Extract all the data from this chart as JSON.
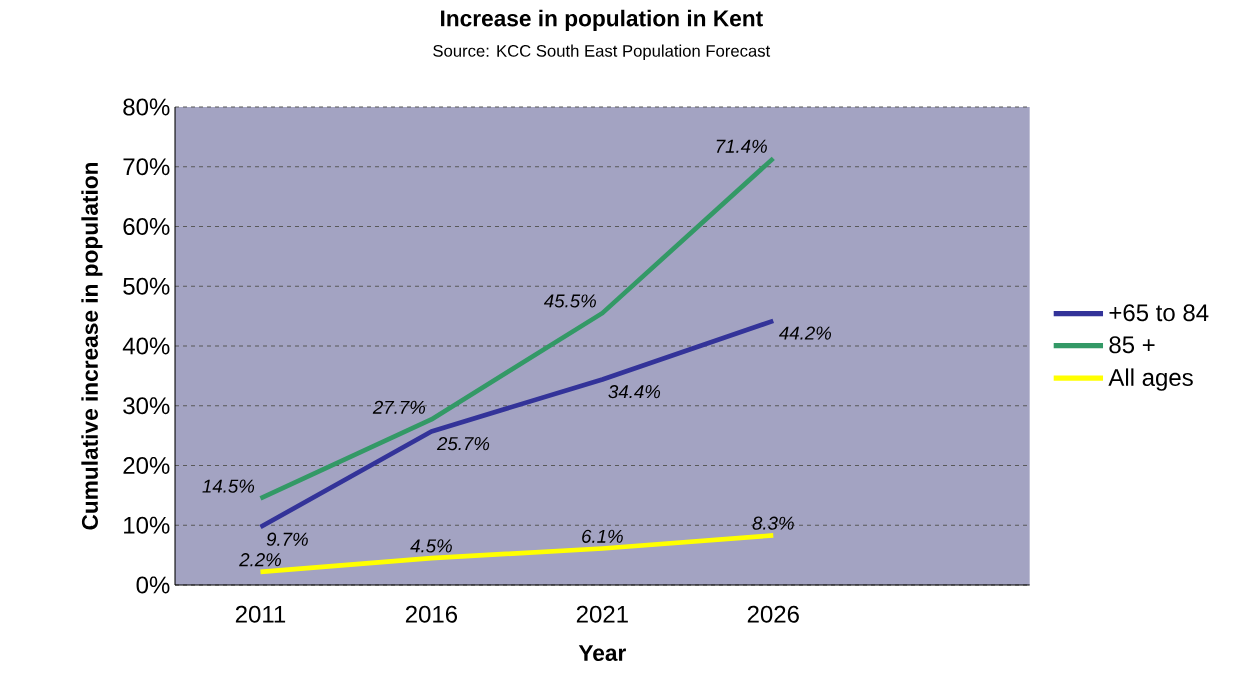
{
  "chart_data": {
    "type": "line",
    "title": "Increase in population in Kent",
    "subtitle": "Source: KCC South East Population Forecast",
    "xlabel": "Year",
    "ylabel": "Cumulative increase in population",
    "categories": [
      "2011",
      "2016",
      "2021",
      "2026",
      null
    ],
    "series": [
      {
        "name": "+65 to 84",
        "color": "#333399",
        "values": [
          9.7,
          25.7,
          34.4,
          44.2,
          null
        ],
        "value_labels": [
          "9.7%",
          "25.7%",
          "34.4%",
          "44.2%",
          null
        ]
      },
      {
        "name": "85 +",
        "color": "#339966",
        "values": [
          14.5,
          27.7,
          45.5,
          71.4,
          null
        ],
        "value_labels": [
          "14.5%",
          "27.7%",
          "45.5%",
          "71.4%",
          null
        ]
      },
      {
        "name": "All ages",
        "color": "#ffff00",
        "values": [
          2.2,
          4.5,
          6.1,
          8.3,
          null
        ],
        "value_labels": [
          "2.2%",
          "4.5%",
          "6.1%",
          "8.3%",
          null
        ]
      }
    ],
    "ylim": [
      0,
      80
    ],
    "yticks": [
      {
        "value": 0,
        "label": "0%"
      },
      {
        "value": 10,
        "label": "10%"
      },
      {
        "value": 20,
        "label": "20%"
      },
      {
        "value": 30,
        "label": "30%"
      },
      {
        "value": 40,
        "label": "40%"
      },
      {
        "value": 50,
        "label": "50%"
      },
      {
        "value": 60,
        "label": "60%"
      },
      {
        "value": 70,
        "label": "70%"
      },
      {
        "value": 80,
        "label": "80%"
      }
    ],
    "grid": "y",
    "legend": "right",
    "line_style": "solid",
    "marker": "none"
  }
}
